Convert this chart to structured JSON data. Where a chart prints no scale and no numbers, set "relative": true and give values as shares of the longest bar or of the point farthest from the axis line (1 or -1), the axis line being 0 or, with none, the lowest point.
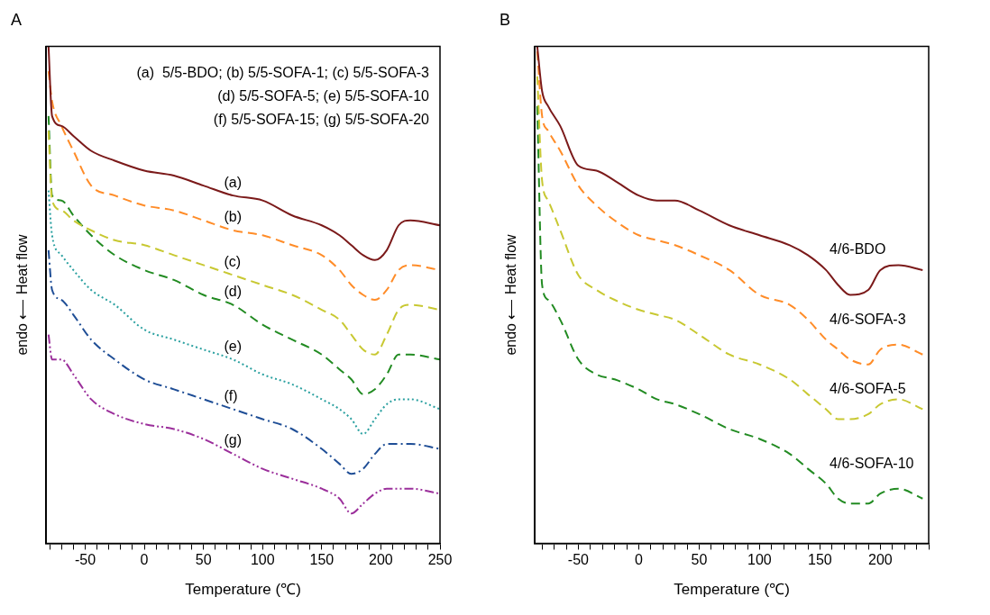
{
  "chart_data": [
    {
      "type": "line",
      "title": "A",
      "xlabel": "Temperature (℃)",
      "ylabel": "endo ⟵ Heat flow",
      "relative": true,
      "legend": false,
      "xlim": [
        -83,
        250
      ],
      "xticks": [
        {
          "value": -80,
          "label": null
        },
        {
          "value": -70,
          "label": null
        },
        {
          "value": -60,
          "label": null
        },
        -50,
        {
          "value": -40,
          "label": null
        },
        {
          "value": -30,
          "label": null
        },
        {
          "value": -20,
          "label": null
        },
        {
          "value": -10,
          "label": null
        },
        0,
        {
          "value": 10,
          "label": null
        },
        {
          "value": 20,
          "label": null
        },
        {
          "value": 30,
          "label": null
        },
        {
          "value": 40,
          "label": null
        },
        50,
        {
          "value": 60,
          "label": null
        },
        {
          "value": 70,
          "label": null
        },
        {
          "value": 80,
          "label": null
        },
        {
          "value": 90,
          "label": null
        },
        100,
        {
          "value": 110,
          "label": null
        },
        {
          "value": 120,
          "label": null
        },
        {
          "value": 130,
          "label": null
        },
        {
          "value": 140,
          "label": null
        },
        150,
        {
          "value": 160,
          "label": null
        },
        {
          "value": 170,
          "label": null
        },
        {
          "value": 180,
          "label": null
        },
        {
          "value": 190,
          "label": null
        },
        200,
        {
          "value": 210,
          "label": null
        },
        {
          "value": 220,
          "label": null
        },
        {
          "value": 230,
          "label": null
        },
        {
          "value": 240,
          "label": null
        },
        250
      ],
      "x": [
        -81,
        -78,
        -70,
        -60,
        -45,
        -25,
        0,
        25,
        50,
        75,
        100,
        125,
        150,
        165,
        175,
        185,
        195,
        205,
        215,
        225,
        250
      ],
      "series": [
        {
          "name": "(a)",
          "color": "#7b1a1a",
          "line_style": "solid",
          "values": [
            1.0,
            0.86,
            0.84,
            0.82,
            0.79,
            0.77,
            0.75,
            0.74,
            0.72,
            0.7,
            0.69,
            0.66,
            0.64,
            0.62,
            0.6,
            0.58,
            0.57,
            0.59,
            0.64,
            0.65,
            0.64
          ]
        },
        {
          "name": "(b)",
          "color": "#ff8c28",
          "line_style": "dashed",
          "values": [
            0.95,
            0.89,
            0.84,
            0.79,
            0.72,
            0.7,
            0.68,
            0.67,
            0.65,
            0.63,
            0.62,
            0.6,
            0.58,
            0.55,
            0.52,
            0.5,
            0.49,
            0.51,
            0.55,
            0.56,
            0.55
          ]
        },
        {
          "name": "(c)",
          "color": "#c8c832",
          "line_style": "dashed",
          "values": [
            0.83,
            0.69,
            0.67,
            0.65,
            0.63,
            0.61,
            0.6,
            0.58,
            0.56,
            0.54,
            0.52,
            0.5,
            0.47,
            0.45,
            0.42,
            0.39,
            0.38,
            0.42,
            0.47,
            0.48,
            0.47
          ]
        },
        {
          "name": "(d)",
          "color": "#228b22",
          "line_style": "dashed",
          "values": [
            0.86,
            0.7,
            0.69,
            0.66,
            0.62,
            0.58,
            0.55,
            0.53,
            0.5,
            0.48,
            0.44,
            0.41,
            0.38,
            0.35,
            0.33,
            0.3,
            0.31,
            0.34,
            0.38,
            0.38,
            0.37
          ]
        },
        {
          "name": "(e)",
          "color": "#2aa0a0",
          "line_style": "dotted",
          "values": [
            0.71,
            0.62,
            0.58,
            0.55,
            0.51,
            0.48,
            0.43,
            0.41,
            0.39,
            0.37,
            0.34,
            0.32,
            0.29,
            0.27,
            0.25,
            0.22,
            0.25,
            0.28,
            0.29,
            0.29,
            0.27
          ]
        },
        {
          "name": "(f)",
          "color": "#1f4e96",
          "line_style": "dashdot",
          "values": [
            0.59,
            0.51,
            0.49,
            0.46,
            0.41,
            0.37,
            0.33,
            0.31,
            0.29,
            0.27,
            0.25,
            0.23,
            0.19,
            0.16,
            0.14,
            0.15,
            0.18,
            0.2,
            0.2,
            0.2,
            0.19
          ]
        },
        {
          "name": "(g)",
          "color": "#9b2f9b",
          "line_style": "dashdotdot",
          "values": [
            0.42,
            0.37,
            0.37,
            0.34,
            0.29,
            0.26,
            0.24,
            0.23,
            0.21,
            0.18,
            0.15,
            0.13,
            0.11,
            0.09,
            0.06,
            0.08,
            0.1,
            0.11,
            0.11,
            0.11,
            0.1
          ]
        }
      ],
      "annotations": [
        "(a)  5/5-BDO; (b) 5/5-SOFA-1; (c) 5/5-SOFA-3",
        "(d) 5/5-SOFA-5; (e) 5/5-SOFA-10",
        "(f) 5/5-SOFA-15; (g) 5/5-SOFA-20"
      ]
    },
    {
      "type": "line",
      "title": "B",
      "xlabel": "Temperature (℃)",
      "ylabel": "endo ⟵ Heat flow",
      "relative": true,
      "legend": false,
      "xlim": [
        -86,
        240
      ],
      "xticks": [
        {
          "value": -80,
          "label": null
        },
        {
          "value": -70,
          "label": null
        },
        {
          "value": -60,
          "label": null
        },
        -50,
        {
          "value": -40,
          "label": null
        },
        {
          "value": -30,
          "label": null
        },
        {
          "value": -20,
          "label": null
        },
        {
          "value": -10,
          "label": null
        },
        0,
        {
          "value": 10,
          "label": null
        },
        {
          "value": 20,
          "label": null
        },
        {
          "value": 30,
          "label": null
        },
        {
          "value": 40,
          "label": null
        },
        50,
        {
          "value": 60,
          "label": null
        },
        {
          "value": 70,
          "label": null
        },
        {
          "value": 80,
          "label": null
        },
        {
          "value": 90,
          "label": null
        },
        100,
        {
          "value": 110,
          "label": null
        },
        {
          "value": 120,
          "label": null
        },
        {
          "value": 130,
          "label": null
        },
        {
          "value": 140,
          "label": null
        },
        150,
        {
          "value": 160,
          "label": null
        },
        {
          "value": 170,
          "label": null
        },
        {
          "value": 180,
          "label": null
        },
        {
          "value": 190,
          "label": null
        },
        200,
        {
          "value": 210,
          "label": null
        },
        {
          "value": 220,
          "label": null
        },
        {
          "value": 230,
          "label": null
        },
        {
          "value": 240,
          "label": null
        }
      ],
      "x": [
        -84,
        -80,
        -75,
        -65,
        -50,
        -35,
        -20,
        0,
        15,
        30,
        50,
        75,
        100,
        125,
        140,
        155,
        165,
        175,
        190,
        200,
        215,
        235
      ],
      "series": [
        {
          "name": "4/6-BDO",
          "color": "#7b1a1a",
          "line_style": "solid",
          "values": [
            1.0,
            0.91,
            0.88,
            0.84,
            0.76,
            0.75,
            0.73,
            0.7,
            0.69,
            0.69,
            0.67,
            0.64,
            0.62,
            0.6,
            0.58,
            0.55,
            0.52,
            0.5,
            0.51,
            0.55,
            0.56,
            0.55
          ]
        },
        {
          "name": "4/6-SOFA-3",
          "color": "#ff8c28",
          "line_style": "dashed",
          "values": [
            0.99,
            0.86,
            0.83,
            0.79,
            0.72,
            0.68,
            0.65,
            0.62,
            0.61,
            0.6,
            0.58,
            0.55,
            0.5,
            0.48,
            0.45,
            0.41,
            0.39,
            0.37,
            0.36,
            0.39,
            0.4,
            0.38
          ]
        },
        {
          "name": "4/6-SOFA-5",
          "color": "#c8c832",
          "line_style": "dashed",
          "values": [
            0.94,
            0.73,
            0.69,
            0.63,
            0.54,
            0.51,
            0.49,
            0.47,
            0.46,
            0.45,
            0.42,
            0.38,
            0.36,
            0.33,
            0.3,
            0.27,
            0.25,
            0.25,
            0.26,
            0.28,
            0.29,
            0.27
          ]
        },
        {
          "name": "4/6-SOFA-10",
          "color": "#228b22",
          "line_style": "dashed",
          "values": [
            0.88,
            0.52,
            0.49,
            0.45,
            0.37,
            0.34,
            0.33,
            0.31,
            0.29,
            0.28,
            0.26,
            0.23,
            0.21,
            0.18,
            0.15,
            0.12,
            0.09,
            0.08,
            0.08,
            0.1,
            0.11,
            0.09
          ]
        }
      ]
    }
  ]
}
